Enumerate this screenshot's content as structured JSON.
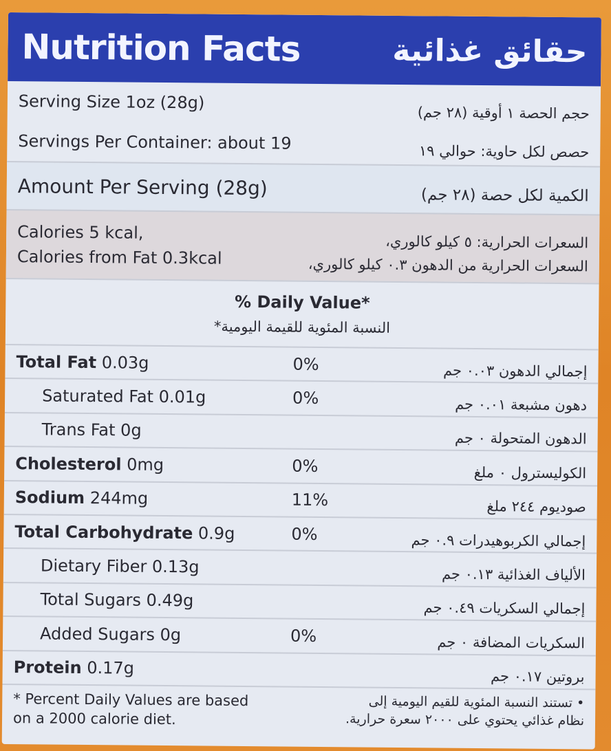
{
  "header": {
    "title_en": "Nutrition Facts",
    "title_ar": "حقائق غذائية"
  },
  "serving": {
    "size_en": "Serving Size 1oz (28g)",
    "size_ar": "حجم الحصة ١ أوقية (٢٨ جم)",
    "per_container_en": "Servings Per Container: about 19",
    "per_container_ar": "حصص لكل حاوية: حوالي ١٩"
  },
  "amount": {
    "en": "Amount Per Serving (28g)",
    "ar": "الكمية لكل حصة (٢٨ جم)"
  },
  "calories": {
    "line1_en": "Calories 5 kcal,",
    "line2_en": "Calories from Fat 0.3kcal",
    "line1_ar": "السعرات الحرارية: ٥ كيلو كالوري،",
    "line2_ar": "السعرات الحرارية من الدهون ٠.٣ كيلو كالوري،"
  },
  "daily_value": {
    "en": "% Daily Value*",
    "ar": "النسبة المئوية للقيمة اليومية*"
  },
  "nutrients": [
    {
      "name": "Total Fat",
      "amount": "0.03g",
      "dv": "0%",
      "ar": "إجمالي الدهون ٠.٠٣ جم",
      "indent": false
    },
    {
      "name": "Saturated Fat",
      "amount": "0.01g",
      "dv": "0%",
      "ar": "دهون مشبعة ٠.٠١ جم",
      "indent": true
    },
    {
      "name": "Trans Fat",
      "amount": "0g",
      "dv": "",
      "ar": "الدهون المتحولة ٠ جم",
      "indent": true
    },
    {
      "name": "Cholesterol",
      "amount": "0mg",
      "dv": "0%",
      "ar": "الكوليسترول ٠ ملغ",
      "indent": false
    },
    {
      "name": "Sodium",
      "amount": "244mg",
      "dv": "11%",
      "ar": "صوديوم ٢٤٤ ملغ",
      "indent": false
    },
    {
      "name": "Total Carbohydrate",
      "amount": "0.9g",
      "dv": "0%",
      "ar": "إجمالي الكربوهيدرات ٠.٩ جم",
      "indent": false
    },
    {
      "name": "Dietary Fiber",
      "amount": "0.13g",
      "dv": "",
      "ar": "الألياف الغذائية ٠.١٣ جم",
      "indent": true
    },
    {
      "name": "Total Sugars",
      "amount": "0.49g",
      "dv": "",
      "ar": "إجمالي السكريات ٠.٤٩ جم",
      "indent": true
    },
    {
      "name": "Added Sugars",
      "amount": "0g",
      "dv": "0%",
      "ar": "السكريات المضافة ٠ جم",
      "indent": true
    },
    {
      "name": "Protein",
      "amount": "0.17g",
      "dv": "",
      "ar": "بروتين ٠.١٧ جم",
      "indent": false
    }
  ],
  "footnote": {
    "en_line1": "* Percent Daily Values are based",
    "en_line2": "on a 2000 calorie diet.",
    "ar_line1": "• تستند النسبة المئوية للقيم اليومية إلى",
    "ar_line2": "نظام غذائي يحتوي على ٢٠٠٠ سعرة حرارية."
  },
  "colors": {
    "header": "#2b3fae",
    "background": "#e38a2c",
    "panel": "#e6eaf2"
  }
}
